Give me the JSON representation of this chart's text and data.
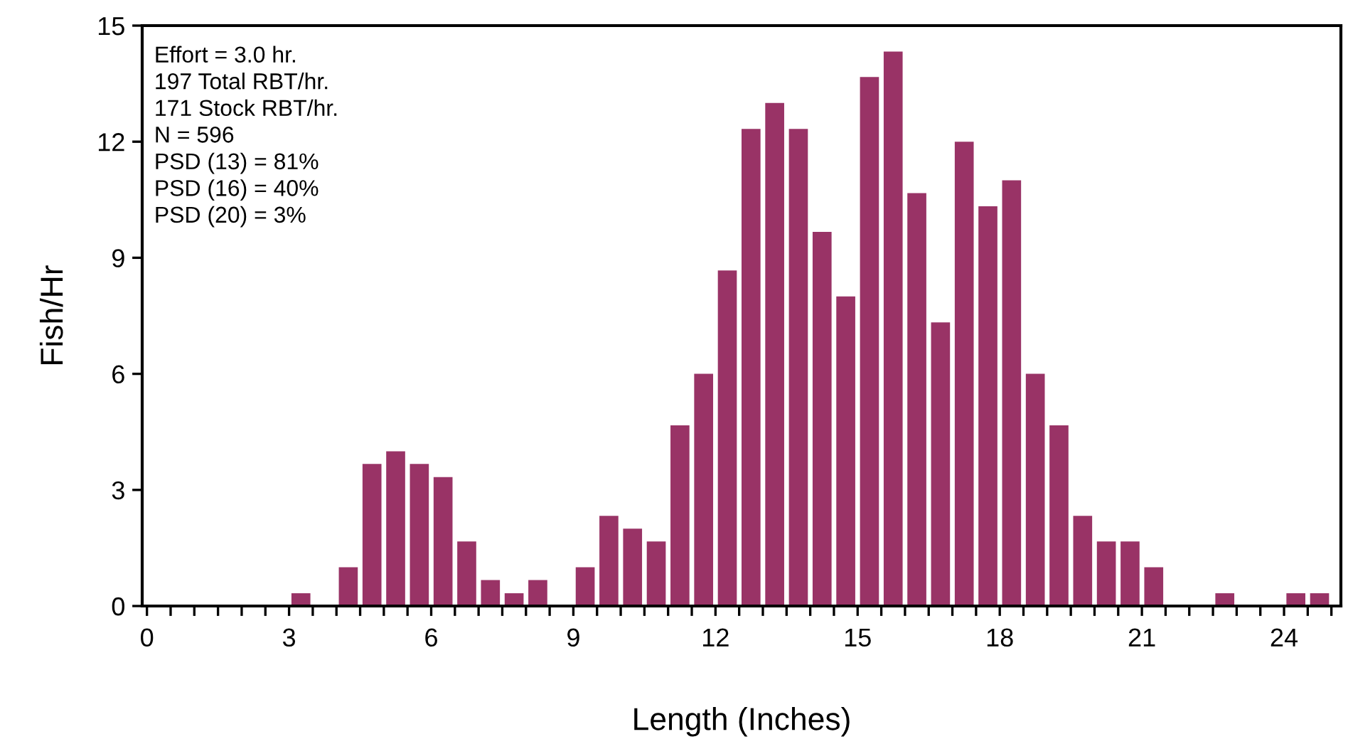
{
  "chart_data": {
    "type": "histogram",
    "xlabel": "Length (Inches)",
    "ylabel": "Fish/Hr",
    "annotations": [
      "Effort = 3.0 hr.",
      "197 Total RBT/hr.",
      "171 Stock RBT/hr.",
      "N = 596",
      "PSD (13) = 81%",
      "PSD (16) = 40%",
      "PSD (20) = 3%"
    ],
    "bins": [
      0,
      0.5,
      1,
      1.5,
      2,
      2.5,
      3,
      3.5,
      4,
      4.5,
      5,
      5.5,
      6,
      6.5,
      7,
      7.5,
      8,
      8.5,
      9,
      9.5,
      10,
      10.5,
      11,
      11.5,
      12,
      12.5,
      13,
      13.5,
      14,
      14.5,
      15,
      15.5,
      16,
      16.5,
      17,
      17.5,
      18,
      18.5,
      19,
      19.5,
      20,
      20.5,
      21,
      21.5,
      22,
      22.5,
      23,
      23.5,
      24,
      24.5,
      25
    ],
    "values": [
      0,
      0,
      0,
      0,
      0,
      0,
      0.33,
      0,
      1,
      3.67,
      4,
      3.67,
      3.33,
      1.67,
      0.67,
      0.33,
      0.67,
      0,
      1,
      2.33,
      2,
      1.67,
      4.67,
      6,
      8.67,
      12.33,
      13,
      12.33,
      9.67,
      8,
      13.67,
      14.33,
      10.67,
      7.33,
      12,
      10.33,
      11,
      6,
      4.67,
      2.33,
      1.67,
      1.67,
      1,
      0,
      0,
      0.33,
      0,
      0,
      0.33,
      0.33
    ],
    "color": "#993366",
    "xlim": [
      -0.1,
      25.2
    ],
    "xticks": [
      0,
      {
        "value": 0.5,
        "label": null
      },
      {
        "value": 1,
        "label": null
      },
      {
        "value": 1.5,
        "label": null
      },
      {
        "value": 2,
        "label": null
      },
      {
        "value": 2.5,
        "label": null
      },
      3,
      {
        "value": 3.5,
        "label": null
      },
      {
        "value": 4,
        "label": null
      },
      {
        "value": 4.5,
        "label": null
      },
      {
        "value": 5,
        "label": null
      },
      {
        "value": 5.5,
        "label": null
      },
      6,
      {
        "value": 6.5,
        "label": null
      },
      {
        "value": 7,
        "label": null
      },
      {
        "value": 7.5,
        "label": null
      },
      {
        "value": 8,
        "label": null
      },
      {
        "value": 8.5,
        "label": null
      },
      9,
      {
        "value": 9.5,
        "label": null
      },
      {
        "value": 10,
        "label": null
      },
      {
        "value": 10.5,
        "label": null
      },
      {
        "value": 11,
        "label": null
      },
      {
        "value": 11.5,
        "label": null
      },
      12,
      {
        "value": 12.5,
        "label": null
      },
      {
        "value": 13,
        "label": null
      },
      {
        "value": 13.5,
        "label": null
      },
      {
        "value": 14,
        "label": null
      },
      {
        "value": 14.5,
        "label": null
      },
      15,
      {
        "value": 15.5,
        "label": null
      },
      {
        "value": 16,
        "label": null
      },
      {
        "value": 16.5,
        "label": null
      },
      {
        "value": 17,
        "label": null
      },
      {
        "value": 17.5,
        "label": null
      },
      18,
      {
        "value": 18.5,
        "label": null
      },
      {
        "value": 19,
        "label": null
      },
      {
        "value": 19.5,
        "label": null
      },
      {
        "value": 20,
        "label": null
      },
      {
        "value": 20.5,
        "label": null
      },
      21,
      {
        "value": 21.5,
        "label": null
      },
      {
        "value": 22,
        "label": null
      },
      {
        "value": 22.5,
        "label": null
      },
      {
        "value": 23,
        "label": null
      },
      {
        "value": 23.5,
        "label": null
      },
      24,
      {
        "value": 24.5,
        "label": null
      },
      {
        "value": 25,
        "label": null
      }
    ],
    "ylim": [
      0,
      15
    ],
    "yticks": [
      0,
      3,
      6,
      9,
      12,
      15
    ]
  }
}
